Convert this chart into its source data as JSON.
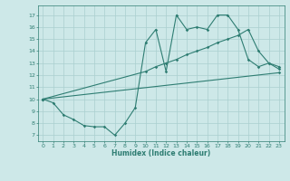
{
  "xlabel": "Humidex (Indice chaleur)",
  "bg_color": "#cde8e8",
  "line_color": "#2e7d72",
  "grid_color": "#aacfcf",
  "xlim": [
    -0.5,
    23.5
  ],
  "ylim": [
    6.5,
    17.8
  ],
  "xticks": [
    0,
    1,
    2,
    3,
    4,
    5,
    6,
    7,
    8,
    9,
    10,
    11,
    12,
    13,
    14,
    15,
    16,
    17,
    18,
    19,
    20,
    21,
    22,
    23
  ],
  "yticks": [
    7,
    8,
    9,
    10,
    11,
    12,
    13,
    14,
    15,
    16,
    17
  ],
  "line1_x": [
    0,
    1,
    2,
    3,
    4,
    5,
    6,
    7,
    8,
    9,
    10,
    11,
    12,
    13,
    14,
    15,
    16,
    17,
    18,
    19,
    20,
    21,
    22,
    23
  ],
  "line1_y": [
    10.0,
    9.7,
    8.7,
    8.3,
    7.8,
    7.7,
    7.7,
    7.0,
    8.0,
    9.3,
    14.7,
    15.8,
    12.3,
    17.0,
    15.8,
    16.0,
    15.8,
    17.0,
    17.0,
    15.8,
    13.3,
    12.7,
    13.0,
    12.7
  ],
  "line2_x": [
    0,
    10,
    11,
    12,
    13,
    14,
    15,
    16,
    17,
    18,
    19,
    20,
    21,
    22,
    23
  ],
  "line2_y": [
    10.0,
    12.3,
    12.7,
    13.0,
    13.3,
    13.7,
    14.0,
    14.3,
    14.7,
    15.0,
    15.3,
    15.8,
    14.0,
    13.0,
    12.5
  ],
  "line3_x": [
    0,
    23
  ],
  "line3_y": [
    10.0,
    12.2
  ]
}
